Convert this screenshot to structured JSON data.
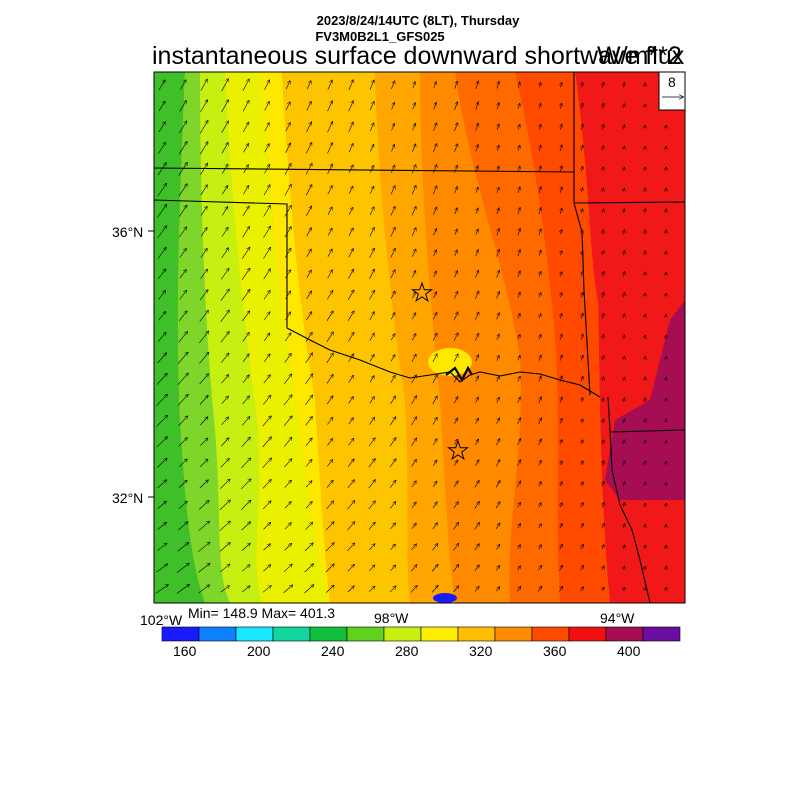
{
  "header": {
    "datetime": "2023/8/24/14UTC (8LT), Thursday",
    "model": "FV3M0B2L1_GFS025",
    "title": "instantaneous surface downward shortwave flux",
    "units": "W/m**2"
  },
  "vector_reference": {
    "value": "8"
  },
  "axes": {
    "lat_labels": [
      "36°N",
      "32°N"
    ],
    "lon_labels": [
      "102°W",
      "98°W",
      "94°W"
    ]
  },
  "stats": "Min= 148.9 Max= 401.3",
  "colorbar": {
    "colors": [
      "#1a1aff",
      "#0d80ff",
      "#1ae6ff",
      "#12d69e",
      "#10bf3a",
      "#61d11d",
      "#c6ef12",
      "#ffee00",
      "#ffbf00",
      "#ff8c00",
      "#ff4b00",
      "#f01010",
      "#a60d52",
      "#6b0da0"
    ],
    "labels": [
      "160",
      "200",
      "240",
      "280",
      "320",
      "360",
      "400"
    ]
  },
  "map": {
    "band_colors": [
      "#3fbf2a",
      "#7fd62a",
      "#c6ef12",
      "#eaf000",
      "#ffe800",
      "#ffc400",
      "#ffa600",
      "#ff8a00",
      "#ff6a00",
      "#ff4a00",
      "#f01818",
      "#a60d52"
    ],
    "station_markers": 2,
    "wind": {
      "u": 0.5,
      "v": 1.0
    }
  }
}
